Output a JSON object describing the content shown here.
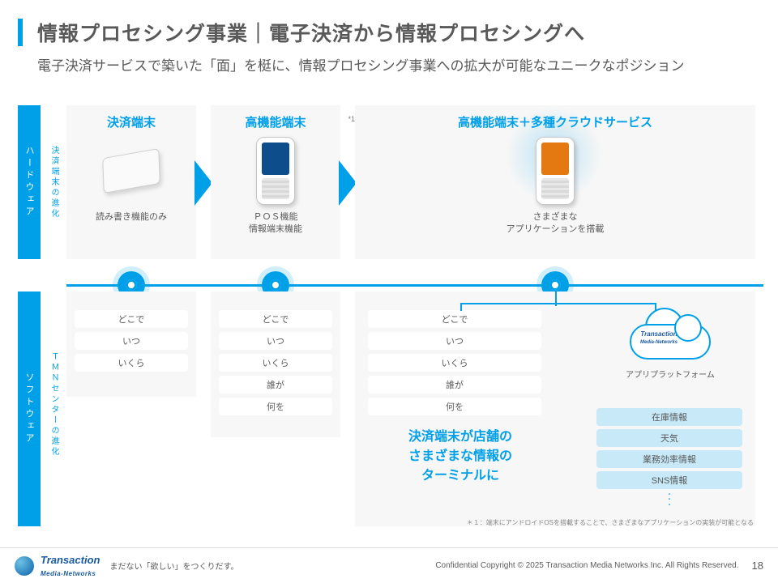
{
  "colors": {
    "accent": "#00a0e9",
    "text": "#595959",
    "panel": "#f7f7f7",
    "tagblue": "#c7e9f8"
  },
  "title": {
    "main": "情報プロセシング事業｜電子決済から情報プロセシングへ",
    "sub": "電子決済サービスで築いた「面」を梃に、情報プロセシング事業への拡大が可能なユニークなポジション"
  },
  "side": {
    "hw": "ハードウェア",
    "sw": "ソフトウェア",
    "hw_sub": "決済端末の進化",
    "sw_sub": "ＴＭＮセンターの進化"
  },
  "hw_panels": [
    {
      "title": "決済端末",
      "caption": "読み書き機能のみ",
      "device": "card"
    },
    {
      "title": "高機能端末",
      "note": "*1",
      "caption": "ＰＯＳ機能\n情報端末機能",
      "device": "blue"
    },
    {
      "title": "高機能端末＋多種クラウドサービス",
      "caption": "さまざまな\nアプリケーションを搭載",
      "device": "orange"
    }
  ],
  "sw_panels": {
    "col1": [
      "どこで",
      "いつ",
      "いくら"
    ],
    "col2": [
      "どこで",
      "いつ",
      "いくら",
      "誰が",
      "何を"
    ],
    "col3_tags": [
      "どこで",
      "いつ",
      "いくら",
      "誰が",
      "何を"
    ],
    "col3_msg": "決済端末が店舗の\nさまざまな情報の\nターミナルに",
    "cloud_logo": "Transaction",
    "cloud_sub": "Media-Networks",
    "cloud_label": "アプリプラットフォーム",
    "svc": [
      "在庫情報",
      "天気",
      "業務効率情報",
      "SNS情報"
    ]
  },
  "fineprint": "＊１：端末にアンドロイドOSを搭載することで、さまざまなアプリケーションの実装が可能となる",
  "footer": {
    "brand": "Transaction",
    "brand_sub": "Media-Networks",
    "tagline": "まだない「欲しい」をつくりだす。",
    "copyright": "Confidential  Copyright © 2025 Transaction Media Networks Inc. All Rights Reserved.",
    "page": "18"
  }
}
